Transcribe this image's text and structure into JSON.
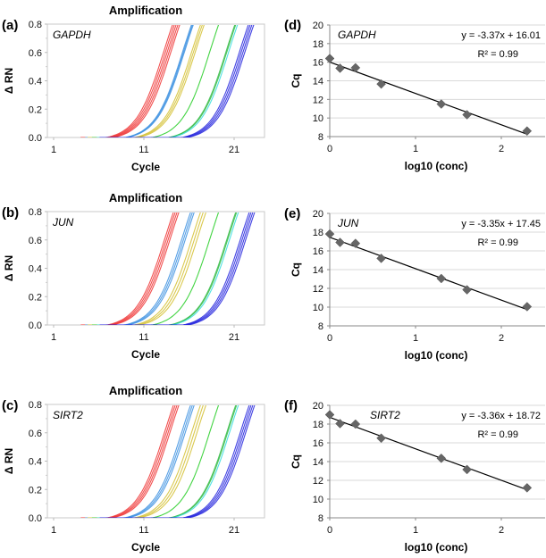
{
  "chart_data": [
    {
      "panel": "(a)",
      "type": "line",
      "title": "Amplification",
      "gene": "GAPDH",
      "xlabel": "Cycle",
      "ylabel": "Δ RN",
      "xlim": [
        0.3,
        24.5
      ],
      "ylim": [
        0,
        0.8
      ],
      "xticks": [
        "1",
        "11",
        "21"
      ],
      "yticks": [
        "0.0",
        "0.2",
        "0.4",
        "0.6",
        "0.8"
      ],
      "series": [
        {
          "name": "red",
          "color": "#ee3333",
          "ct": [
            10.9,
            11.1,
            11.3,
            11.5,
            11.7
          ]
        },
        {
          "name": "blue-light",
          "color": "#3a8fe0",
          "ct": [
            13.0,
            13.1,
            13.2
          ]
        },
        {
          "name": "yellow",
          "color": "#d4c030",
          "ct": [
            14.0,
            14.2,
            14.4
          ]
        },
        {
          "name": "green",
          "color": "#22cc22",
          "ct": [
            16.0
          ]
        },
        {
          "name": "green-2",
          "color": "#33bb44",
          "ct": [
            17.8,
            17.9
          ]
        },
        {
          "name": "cyan",
          "color": "#33dddd",
          "ct": [
            18.1
          ]
        },
        {
          "name": "blue",
          "color": "#2222dd",
          "ct": [
            19.3,
            19.5,
            19.7,
            19.9
          ]
        }
      ]
    },
    {
      "panel": "(b)",
      "type": "line",
      "title": "Amplification",
      "gene": "JUN",
      "xlabel": "Cycle",
      "ylabel": "Δ RN",
      "xlim": [
        0.3,
        24.5
      ],
      "ylim": [
        0,
        0.8
      ],
      "xticks": [
        "1",
        "11",
        "21"
      ],
      "yticks": [
        "0.0",
        "0.2",
        "0.4",
        "0.6",
        "0.8"
      ],
      "series": [
        {
          "name": "red",
          "color": "#ee3333",
          "ct": [
            11.0,
            11.2,
            11.4,
            11.6
          ]
        },
        {
          "name": "blue-light",
          "color": "#3a8fe0",
          "ct": [
            12.9,
            13.1,
            13.3
          ]
        },
        {
          "name": "yellow",
          "color": "#d4c030",
          "ct": [
            14.0,
            14.3,
            14.6
          ]
        },
        {
          "name": "green",
          "color": "#22cc22",
          "ct": [
            16.0
          ]
        },
        {
          "name": "green-2",
          "color": "#33bb44",
          "ct": [
            17.9,
            18.0
          ]
        },
        {
          "name": "cyan",
          "color": "#33dddd",
          "ct": [
            18.2
          ]
        },
        {
          "name": "blue",
          "color": "#2222dd",
          "ct": [
            19.4,
            19.6,
            19.8,
            20.0
          ]
        }
      ]
    },
    {
      "panel": "(c)",
      "type": "line",
      "title": "Amplification",
      "gene": "SIRT2",
      "xlabel": "Cycle",
      "ylabel": "Δ RN",
      "xlim": [
        0.3,
        24.5
      ],
      "ylim": [
        0,
        0.8
      ],
      "xticks": [
        "1",
        "11",
        "21"
      ],
      "yticks": [
        "0.0",
        "0.2",
        "0.4",
        "0.6",
        "0.8"
      ],
      "series": [
        {
          "name": "red",
          "color": "#ee3333",
          "ct": [
            11.0,
            11.2,
            11.4,
            11.6
          ]
        },
        {
          "name": "blue-light",
          "color": "#3a8fe0",
          "ct": [
            12.9,
            13.1,
            13.3
          ]
        },
        {
          "name": "yellow",
          "color": "#d4c030",
          "ct": [
            14.0,
            14.3,
            14.6
          ]
        },
        {
          "name": "green",
          "color": "#22cc22",
          "ct": [
            16.0
          ]
        },
        {
          "name": "green-2",
          "color": "#33bb44",
          "ct": [
            17.9,
            18.0
          ]
        },
        {
          "name": "cyan",
          "color": "#33dddd",
          "ct": [
            18.2
          ]
        },
        {
          "name": "blue",
          "color": "#2222dd",
          "ct": [
            19.4,
            19.6,
            19.8,
            20.0
          ]
        }
      ]
    },
    {
      "panel": "(d)",
      "type": "scatter",
      "gene": "GAPDH",
      "xlabel": "log10 (conc)",
      "ylabel": "Cq",
      "xlim": [
        0,
        2.5
      ],
      "ylim": [
        8,
        20
      ],
      "xticks": [
        "0",
        "1",
        "2"
      ],
      "yticks": [
        "8",
        "10",
        "12",
        "14",
        "16",
        "18",
        "20"
      ],
      "x": [
        0,
        0.12,
        0.3,
        0.6,
        1.3,
        1.6,
        2.3
      ],
      "y": [
        16.4,
        15.35,
        15.4,
        13.65,
        11.5,
        10.35,
        8.6
      ],
      "trendline": {
        "slope": -3.37,
        "intercept": 16.01,
        "x_range": [
          0,
          2.3
        ]
      },
      "equation": "y = -3.37x + 16.01",
      "r2": "R² = 0.99",
      "grid": true
    },
    {
      "panel": "(e)",
      "type": "scatter",
      "gene": "JUN",
      "xlabel": "log10 (conc)",
      "ylabel": "Cq",
      "xlim": [
        0,
        2.5
      ],
      "ylim": [
        8,
        20
      ],
      "xticks": [
        "0",
        "1",
        "2"
      ],
      "yticks": [
        "8",
        "10",
        "12",
        "14",
        "16",
        "18",
        "20"
      ],
      "x": [
        0,
        0.12,
        0.3,
        0.6,
        1.3,
        1.6,
        2.3
      ],
      "y": [
        17.8,
        16.9,
        16.8,
        15.2,
        13.05,
        11.85,
        10.05
      ],
      "trendline": {
        "slope": -3.35,
        "intercept": 17.45,
        "x_range": [
          0,
          2.3
        ]
      },
      "equation": "y = -3.35x + 17.45",
      "r2": "R² = 0.99",
      "grid": true
    },
    {
      "panel": "(f)",
      "type": "scatter",
      "gene": "SIRT2",
      "xlabel": "log10 (conc)",
      "ylabel": "Cq",
      "xlim": [
        0,
        2.5
      ],
      "ylim": [
        8,
        20
      ],
      "xticks": [
        "0",
        "1",
        "2"
      ],
      "yticks": [
        "8",
        "10",
        "12",
        "14",
        "16",
        "18",
        "20"
      ],
      "x": [
        0,
        0.12,
        0.3,
        0.6,
        1.3,
        1.6,
        2.3
      ],
      "y": [
        19.0,
        18.05,
        18.0,
        16.5,
        14.35,
        13.15,
        11.2
      ],
      "trendline": {
        "slope": -3.36,
        "intercept": 18.72,
        "x_range": [
          0,
          2.3
        ]
      },
      "equation": "y = -3.36x + 18.72",
      "r2": "R² = 0.99",
      "grid": true
    }
  ]
}
